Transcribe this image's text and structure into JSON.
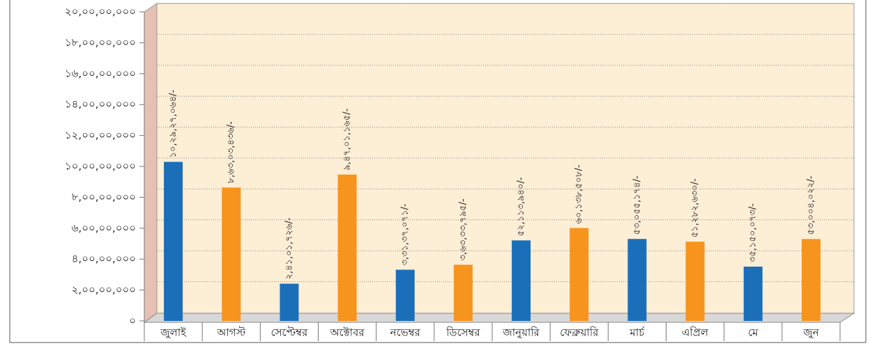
{
  "chart_data": {
    "type": "bar",
    "categories": [
      "জুলাই",
      "আগস্ট",
      "সেপ্টেম্বর",
      "অক্টোবর",
      "নভেম্বর",
      "ডিসেম্বর",
      "জানুয়ারি",
      "ফেব্রুয়ারি",
      "মার্চ",
      "এপ্রিল",
      "মে",
      "জুন"
    ],
    "values": [
      102927064,
      86303436,
      24101726,
      94701165,
      33137071,
      36333795,
      52113940,
      60138508,
      53055174,
      51282630,
      35150073,
      53004022
    ],
    "value_labels": [
      "১০,২৯,২৭,০৬৪/-",
      "৮,৬৩,০৩,৪৩৬/-",
      "২,৪১,০১,৭২৬/-",
      "৯,৪৭,০১,১৬৫/-",
      "৩,৩১,৩৭,০৭১/-",
      "৩,৬৩,৩৩,৭৯৫/-",
      "৫২,১১৩,৯৪০/-",
      "৬০,১৩৮,৫০৮/-",
      "৫৩,০৫৫,১৭৪/-",
      "৫১,২৮২,৬৩০/-",
      "৩৫,১৫০,০৭৩/-",
      "৫৩,০০৪,০২২/-"
    ],
    "colors": [
      "#1b6fb9",
      "#f7941d",
      "#1b6fb9",
      "#f7941d",
      "#1b6fb9",
      "#f7941d",
      "#1b6fb9",
      "#f7941d",
      "#1b6fb9",
      "#f7941d",
      "#1b6fb9",
      "#f7941d"
    ],
    "ylim": [
      0,
      200000000
    ],
    "yticks": [
      {
        "value": 0,
        "label": "০"
      },
      {
        "value": 20000000,
        "label": "২,০০,০০,০০০"
      },
      {
        "value": 40000000,
        "label": "৪,০০,০০,০০০"
      },
      {
        "value": 60000000,
        "label": "৬,০০,০০,০০০"
      },
      {
        "value": 80000000,
        "label": "৮,০০,০০,০০০"
      },
      {
        "value": 100000000,
        "label": "১০,০০,০০,০০০"
      },
      {
        "value": 120000000,
        "label": "১২,০০,০০,০০০"
      },
      {
        "value": 140000000,
        "label": "১৪,০০,০০,০০০"
      },
      {
        "value": 160000000,
        "label": "১৬,০০,০০,০০০"
      },
      {
        "value": 180000000,
        "label": "১৮,০০,০০,০০০"
      },
      {
        "value": 200000000,
        "label": "২০,০০,০০,০০০"
      }
    ],
    "grid": true
  }
}
